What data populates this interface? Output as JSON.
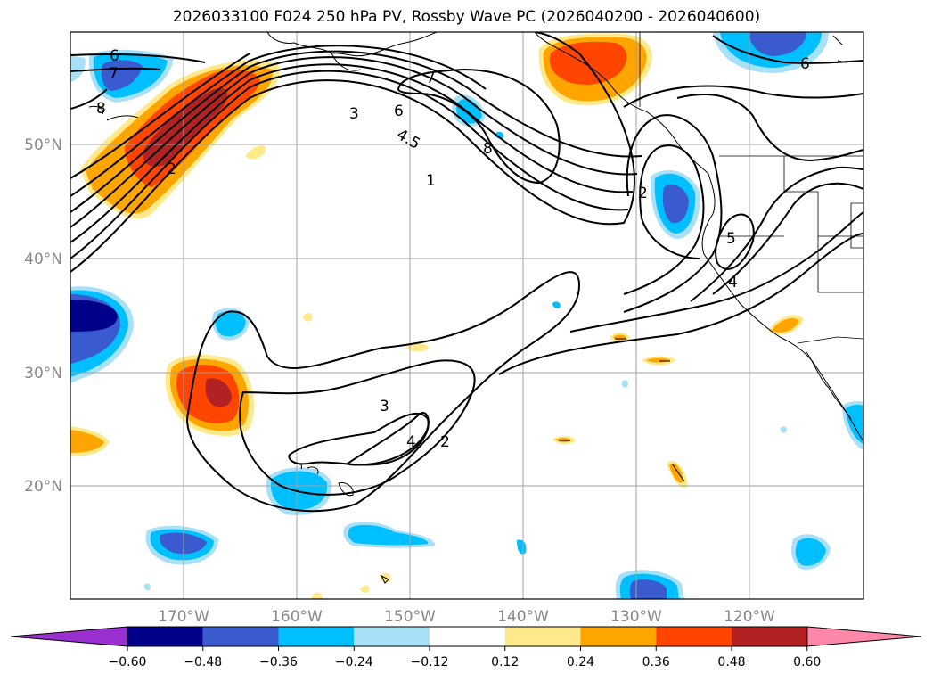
{
  "title": "2026033100 F024 250 hPa PV, Rossby Wave PC (2026040200 - 2026040600)",
  "lat_labels": [
    "50°N",
    "40°N",
    "30°N",
    "20°N"
  ],
  "lon_labels": [
    "170°W",
    "160°W",
    "150°W",
    "140°W",
    "130°W",
    "120°W"
  ],
  "colorbar": {
    "ticks": [
      "−0.60",
      "−0.48",
      "−0.36",
      "−0.24",
      "−0.12",
      "0.12",
      "0.24",
      "0.36",
      "0.48",
      "0.60"
    ],
    "colors": [
      "#9b30d0",
      "#00008b",
      "#3a5bd0",
      "#00bfff",
      "#a8e0f8",
      "#ffffff",
      "#ffe98a",
      "#ffa500",
      "#ff4500",
      "#b22222",
      "#ff88aa"
    ]
  },
  "contour_labels": {
    "c6_nw": "6",
    "c7_nw": "7",
    "c8_nw": "8",
    "c3_nw": "3",
    "c6_mid": "6",
    "c45": "4.5",
    "c1": "1",
    "c7_n": "7",
    "c8_n": "8",
    "c2_nw": "2",
    "c2_east": "2",
    "c5_east": "5",
    "c4_east": "4",
    "c6_ne": "6",
    "c3_sw": "3",
    "c4_sw": "4",
    "c2_sw": "2"
  }
}
